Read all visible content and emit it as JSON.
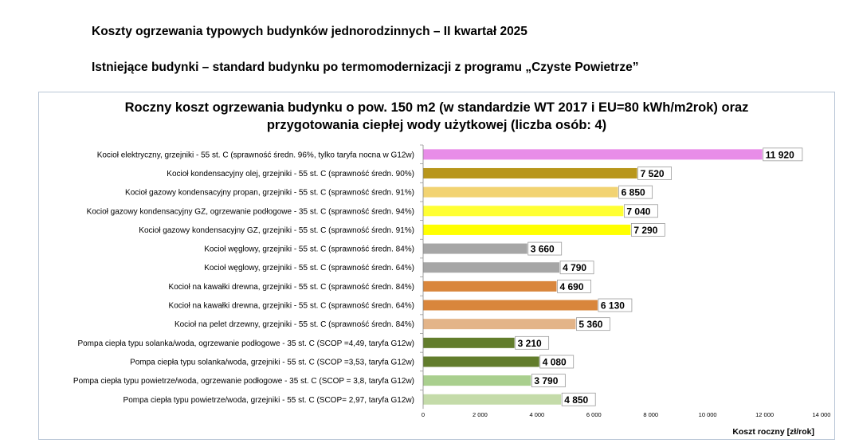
{
  "header": {
    "line1": "Koszty ogrzewania typowych budynków jednorodzinnych – II kwartał 2025",
    "line2": "Istniejące budynki – standard budynku po termomodernizacji z programu „Czyste Powietrze”"
  },
  "chart_data": {
    "type": "bar",
    "orientation": "horizontal",
    "title_line1": "Roczny koszt ogrzewania budynku o pow. 150 m2 (w standardzie WT 2017 i EU=80 kWh/m2rok) oraz",
    "title_line2": "przygotowania ciepłej wody użytkowej (liczba osób: 4)",
    "xlabel": "Koszt roczny [zł/rok]",
    "xlim": [
      0,
      14000
    ],
    "xticks": [
      0,
      2000,
      4000,
      6000,
      8000,
      10000,
      12000,
      14000
    ],
    "xtick_labels": [
      "0",
      "2 000",
      "4 000",
      "6 000",
      "8 000",
      "10 000",
      "12 000",
      "14 000"
    ],
    "grid": false,
    "categories": [
      "Kocioł  elektryczny,  grzejniki - 55 st. C  (sprawność średn. 96%, tylko taryfa nocna w G12w)",
      "Kocioł  kondensacyjny olej,  grzejniki - 55 st. C (sprawność średn. 90%)",
      "Kocioł gazowy kondensacyjny propan, grzejniki - 55 st. C (sprawność średn. 91%)",
      "Kocioł gazowy kondensacyjny GZ, ogrzewanie podłogowe - 35 st. C (sprawność średn. 94%)",
      "Kocioł gazowy kondensacyjny GZ, grzejniki - 55 st. C (sprawność średn. 91%)",
      "Kocioł węglowy,  grzejniki - 55 st. C (sprawność średn. 84%)",
      "Kocioł węglowy,  grzejniki - 55 st. C (sprawność średn. 64%)",
      "Kocioł na kawałki drewna, grzejniki - 55 st. C (sprawność średn. 84%)",
      "Kocioł na kawałki drewna, grzejniki - 55 st. C (sprawność średn. 64%)",
      "Kocioł na pelet drzewny, grzejniki - 55 st. C (sprawność średn. 84%)",
      "Pompa ciepła typu solanka/woda, ogrzewanie podłogowe - 35 st. C (SCOP =4,49, taryfa G12w)",
      "Pompa ciepła typu solanka/woda, grzejniki - 55 st. C (SCOP =3,53, taryfa G12w)",
      "Pompa ciepła typu powietrze/woda, ogrzewanie podłogowe - 35 st. C (SCOP = 3,8, taryfa G12w)",
      "Pompa ciepła typu powietrze/woda, grzejniki - 55 st. C (SCOP= 2,97, taryfa G12w)"
    ],
    "values": [
      11920,
      7520,
      6850,
      7040,
      7290,
      3660,
      4790,
      4690,
      6130,
      5360,
      3210,
      4080,
      3790,
      4850
    ],
    "value_labels": [
      "11 920",
      "7 520",
      "6 850",
      "7 040",
      "7 290",
      "3 660",
      "4 790",
      "4 690",
      "6 130",
      "5 360",
      "3 210",
      "4 080",
      "3 790",
      "4 850"
    ],
    "colors": [
      "#e88de8",
      "#b8961c",
      "#f2d372",
      "#ffff33",
      "#ffff00",
      "#a6a6a6",
      "#a6a6a6",
      "#d9863c",
      "#d9863c",
      "#e3b488",
      "#627d2c",
      "#627d2c",
      "#a9cf8e",
      "#c4dba9"
    ]
  }
}
